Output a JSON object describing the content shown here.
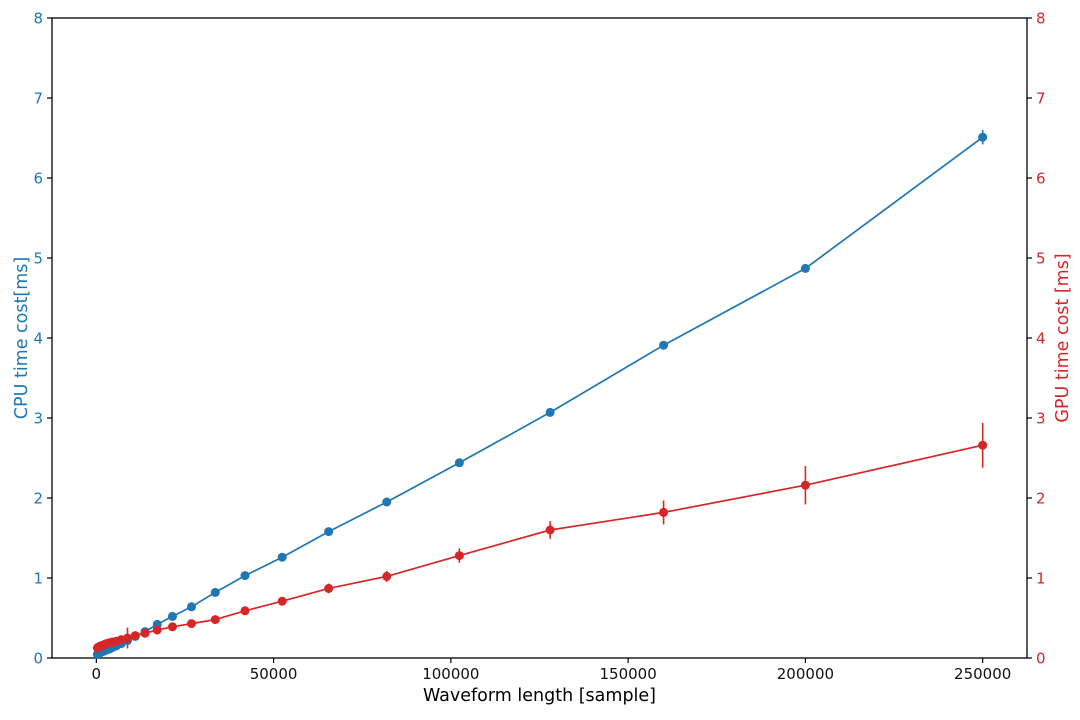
{
  "chart_data": {
    "type": "line",
    "title": "",
    "xlabel": "Waveform length [sample]",
    "ylabel_left": "CPU time cost[ms]",
    "ylabel_right": "GPU time cost [ms]",
    "grid": false,
    "legend": "none",
    "xlim": [
      -12500,
      262500
    ],
    "ylim": [
      0,
      8
    ],
    "x_ticks": [
      0,
      50000,
      100000,
      150000,
      200000,
      250000
    ],
    "y_ticks_left": [
      0,
      1,
      2,
      3,
      4,
      5,
      6,
      7,
      8
    ],
    "y_ticks_right": [
      0,
      1,
      2,
      3,
      4,
      5,
      6,
      7,
      8
    ],
    "x": [
      309,
      387,
      484,
      604,
      756,
      944,
      1181,
      1476,
      1845,
      2306,
      2882,
      3603,
      4504,
      5630,
      7037,
      8796,
      10995,
      13744,
      17180,
      21475,
      26844,
      33554,
      41943,
      52429,
      65536,
      81920,
      102400,
      128000,
      160000,
      200000,
      250000
    ],
    "series": [
      {
        "name": "CPU time cost",
        "axis": "left",
        "color": "#1f77b4",
        "marker": "circle",
        "values": [
          0.045,
          0.048,
          0.05,
          0.055,
          0.06,
          0.065,
          0.07,
          0.075,
          0.08,
          0.09,
          0.1,
          0.11,
          0.13,
          0.15,
          0.18,
          0.22,
          0.27,
          0.33,
          0.42,
          0.52,
          0.64,
          0.82,
          1.03,
          1.26,
          1.58,
          1.95,
          2.44,
          3.07,
          3.91,
          4.87,
          6.51
        ],
        "yerr": [
          0.005,
          0.005,
          0.005,
          0.005,
          0.005,
          0.005,
          0.005,
          0.005,
          0.005,
          0.005,
          0.005,
          0.005,
          0.01,
          0.01,
          0.01,
          0.01,
          0.01,
          0.01,
          0.01,
          0.01,
          0.01,
          0.01,
          0.01,
          0.01,
          0.01,
          0.015,
          0.015,
          0.02,
          0.02,
          0.03,
          0.09
        ]
      },
      {
        "name": "GPU time cost",
        "axis": "right",
        "color": "#d62728",
        "marker": "circle",
        "values": [
          0.125,
          0.128,
          0.13,
          0.135,
          0.14,
          0.145,
          0.15,
          0.155,
          0.16,
          0.17,
          0.18,
          0.19,
          0.2,
          0.21,
          0.23,
          0.25,
          0.28,
          0.31,
          0.35,
          0.39,
          0.43,
          0.48,
          0.59,
          0.71,
          0.87,
          1.02,
          1.28,
          1.6,
          1.82,
          2.16,
          2.66
        ],
        "yerr": [
          0.01,
          0.01,
          0.01,
          0.01,
          0.01,
          0.01,
          0.01,
          0.01,
          0.01,
          0.01,
          0.015,
          0.015,
          0.02,
          0.02,
          0.02,
          0.13,
          0.025,
          0.025,
          0.03,
          0.03,
          0.03,
          0.035,
          0.04,
          0.05,
          0.06,
          0.07,
          0.09,
          0.11,
          0.15,
          0.24,
          0.28
        ]
      }
    ],
    "colors": {
      "cpu_accent": "#1f77b4",
      "gpu_accent": "#d62728",
      "axis": "#000000"
    }
  }
}
